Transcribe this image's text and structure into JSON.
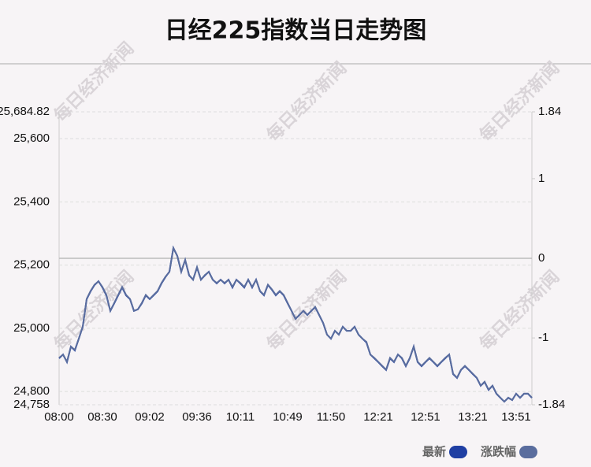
{
  "chart_data": {
    "type": "line",
    "title": "日经225指数当日走势图",
    "watermark": "每日经济新闻",
    "categories": [
      "08:00",
      null,
      null,
      null,
      null,
      null,
      null,
      null,
      null,
      null,
      null,
      "08:30",
      null,
      null,
      null,
      null,
      null,
      null,
      null,
      null,
      null,
      null,
      null,
      "09:02",
      null,
      null,
      null,
      null,
      null,
      null,
      null,
      null,
      null,
      null,
      null,
      "09:36",
      null,
      null,
      null,
      null,
      null,
      null,
      null,
      null,
      null,
      null,
      "10:11",
      null,
      null,
      null,
      null,
      null,
      null,
      null,
      null,
      null,
      null,
      null,
      "10:49",
      null,
      null,
      null,
      null,
      null,
      null,
      null,
      null,
      null,
      null,
      "11:50",
      null,
      null,
      null,
      null,
      null,
      null,
      null,
      null,
      null,
      null,
      null,
      "12:21",
      null,
      null,
      null,
      null,
      null,
      null,
      null,
      null,
      null,
      null,
      null,
      "12:51",
      null,
      null,
      null,
      null,
      null,
      null,
      null,
      null,
      null,
      null,
      null,
      "13:21",
      null,
      null,
      null,
      null,
      null,
      null,
      null,
      null,
      null,
      null,
      "13:51",
      null,
      null,
      null,
      null
    ],
    "series": [
      {
        "name": "最新",
        "color": "#1f3fa3",
        "values": [
          24905,
          24917,
          24893,
          24942,
          24930,
          24967,
          25005,
          25092,
          25117,
          25137,
          25149,
          25129,
          25104,
          25055,
          25079,
          25104,
          25129,
          25104,
          25092,
          25055,
          25060,
          25079,
          25104,
          25092,
          25104,
          25117,
          25142,
          25162,
          25179,
          25254,
          25229,
          25179,
          25216,
          25167,
          25154,
          25192,
          25154,
          25167,
          25179,
          25154,
          25142,
          25154,
          25142,
          25154,
          25129,
          25154,
          25142,
          25129,
          25154,
          25129,
          25154,
          25117,
          25104,
          25137,
          25122,
          25104,
          25117,
          25104,
          25079,
          25055,
          25030,
          25042,
          25055,
          25042,
          25055,
          25067,
          25042,
          25017,
          24980,
          24967,
          24992,
          24980,
          25005,
          24992,
          24992,
          25005,
          24980,
          24967,
          24955,
          24917,
          24905,
          24893,
          24880,
          24868,
          24905,
          24893,
          24917,
          24905,
          24880,
          24905,
          24942,
          24893,
          24880,
          24893,
          24905,
          24893,
          24880,
          24893,
          24905,
          24917,
          24855,
          24843,
          24868,
          24880,
          24868,
          24855,
          24843,
          24818,
          24830,
          24805,
          24818,
          24793,
          24780,
          24768,
          24780,
          24773,
          24793,
          24780,
          24793,
          24793,
          24780
        ]
      },
      {
        "name": "涨跌幅",
        "color": "#5a6d9e",
        "axis": "y2",
        "values": [
          -1.25,
          -1.21,
          -1.3,
          -1.11,
          -1.15,
          -1.01,
          -0.86,
          -0.51,
          -0.41,
          -0.33,
          -0.29,
          -0.36,
          -0.46,
          -0.66,
          -0.56,
          -0.46,
          -0.36,
          -0.46,
          -0.51,
          -0.66,
          -0.64,
          -0.56,
          -0.46,
          -0.51,
          -0.46,
          -0.41,
          -0.31,
          -0.23,
          -0.17,
          0.13,
          0.03,
          -0.17,
          -0.02,
          -0.21,
          -0.27,
          -0.11,
          -0.27,
          -0.21,
          -0.17,
          -0.27,
          -0.31,
          -0.27,
          -0.31,
          -0.27,
          -0.36,
          -0.27,
          -0.31,
          -0.36,
          -0.27,
          -0.36,
          -0.27,
          -0.41,
          -0.46,
          -0.33,
          -0.39,
          -0.46,
          -0.41,
          -0.46,
          -0.56,
          -0.66,
          -0.76,
          -0.71,
          -0.66,
          -0.71,
          -0.66,
          -0.61,
          -0.71,
          -0.81,
          -0.96,
          -1.01,
          -0.91,
          -0.96,
          -0.86,
          -0.91,
          -0.91,
          -0.86,
          -0.96,
          -1.01,
          -1.05,
          -1.21,
          -1.25,
          -1.3,
          -1.35,
          -1.4,
          -1.25,
          -1.3,
          -1.21,
          -1.25,
          -1.35,
          -1.25,
          -1.11,
          -1.3,
          -1.35,
          -1.3,
          -1.25,
          -1.3,
          -1.35,
          -1.3,
          -1.25,
          -1.21,
          -1.45,
          -1.5,
          -1.4,
          -1.35,
          -1.4,
          -1.45,
          -1.5,
          -1.6,
          -1.55,
          -1.65,
          -1.6,
          -1.7,
          -1.75,
          -1.8,
          -1.75,
          -1.78,
          -1.7,
          -1.75,
          -1.7,
          -1.7,
          -1.75
        ]
      }
    ],
    "ylim": [
      24758,
      25684.82
    ],
    "yticks": [
      {
        "value": 24758,
        "label": "24,758"
      },
      {
        "value": 24800,
        "label": "24,800"
      },
      {
        "value": 25000,
        "label": "25,000"
      },
      {
        "value": 25200,
        "label": "25,200"
      },
      {
        "value": 25400,
        "label": "25,400"
      },
      {
        "value": 25600,
        "label": "25,600"
      },
      {
        "value": 25684.82,
        "label": "25,684.82"
      }
    ],
    "y2lim": [
      -1.84,
      1.84
    ],
    "y2ticks": [
      -1.84,
      -1,
      0,
      1,
      1.84
    ],
    "grid": true,
    "legend": "bottom-right"
  }
}
